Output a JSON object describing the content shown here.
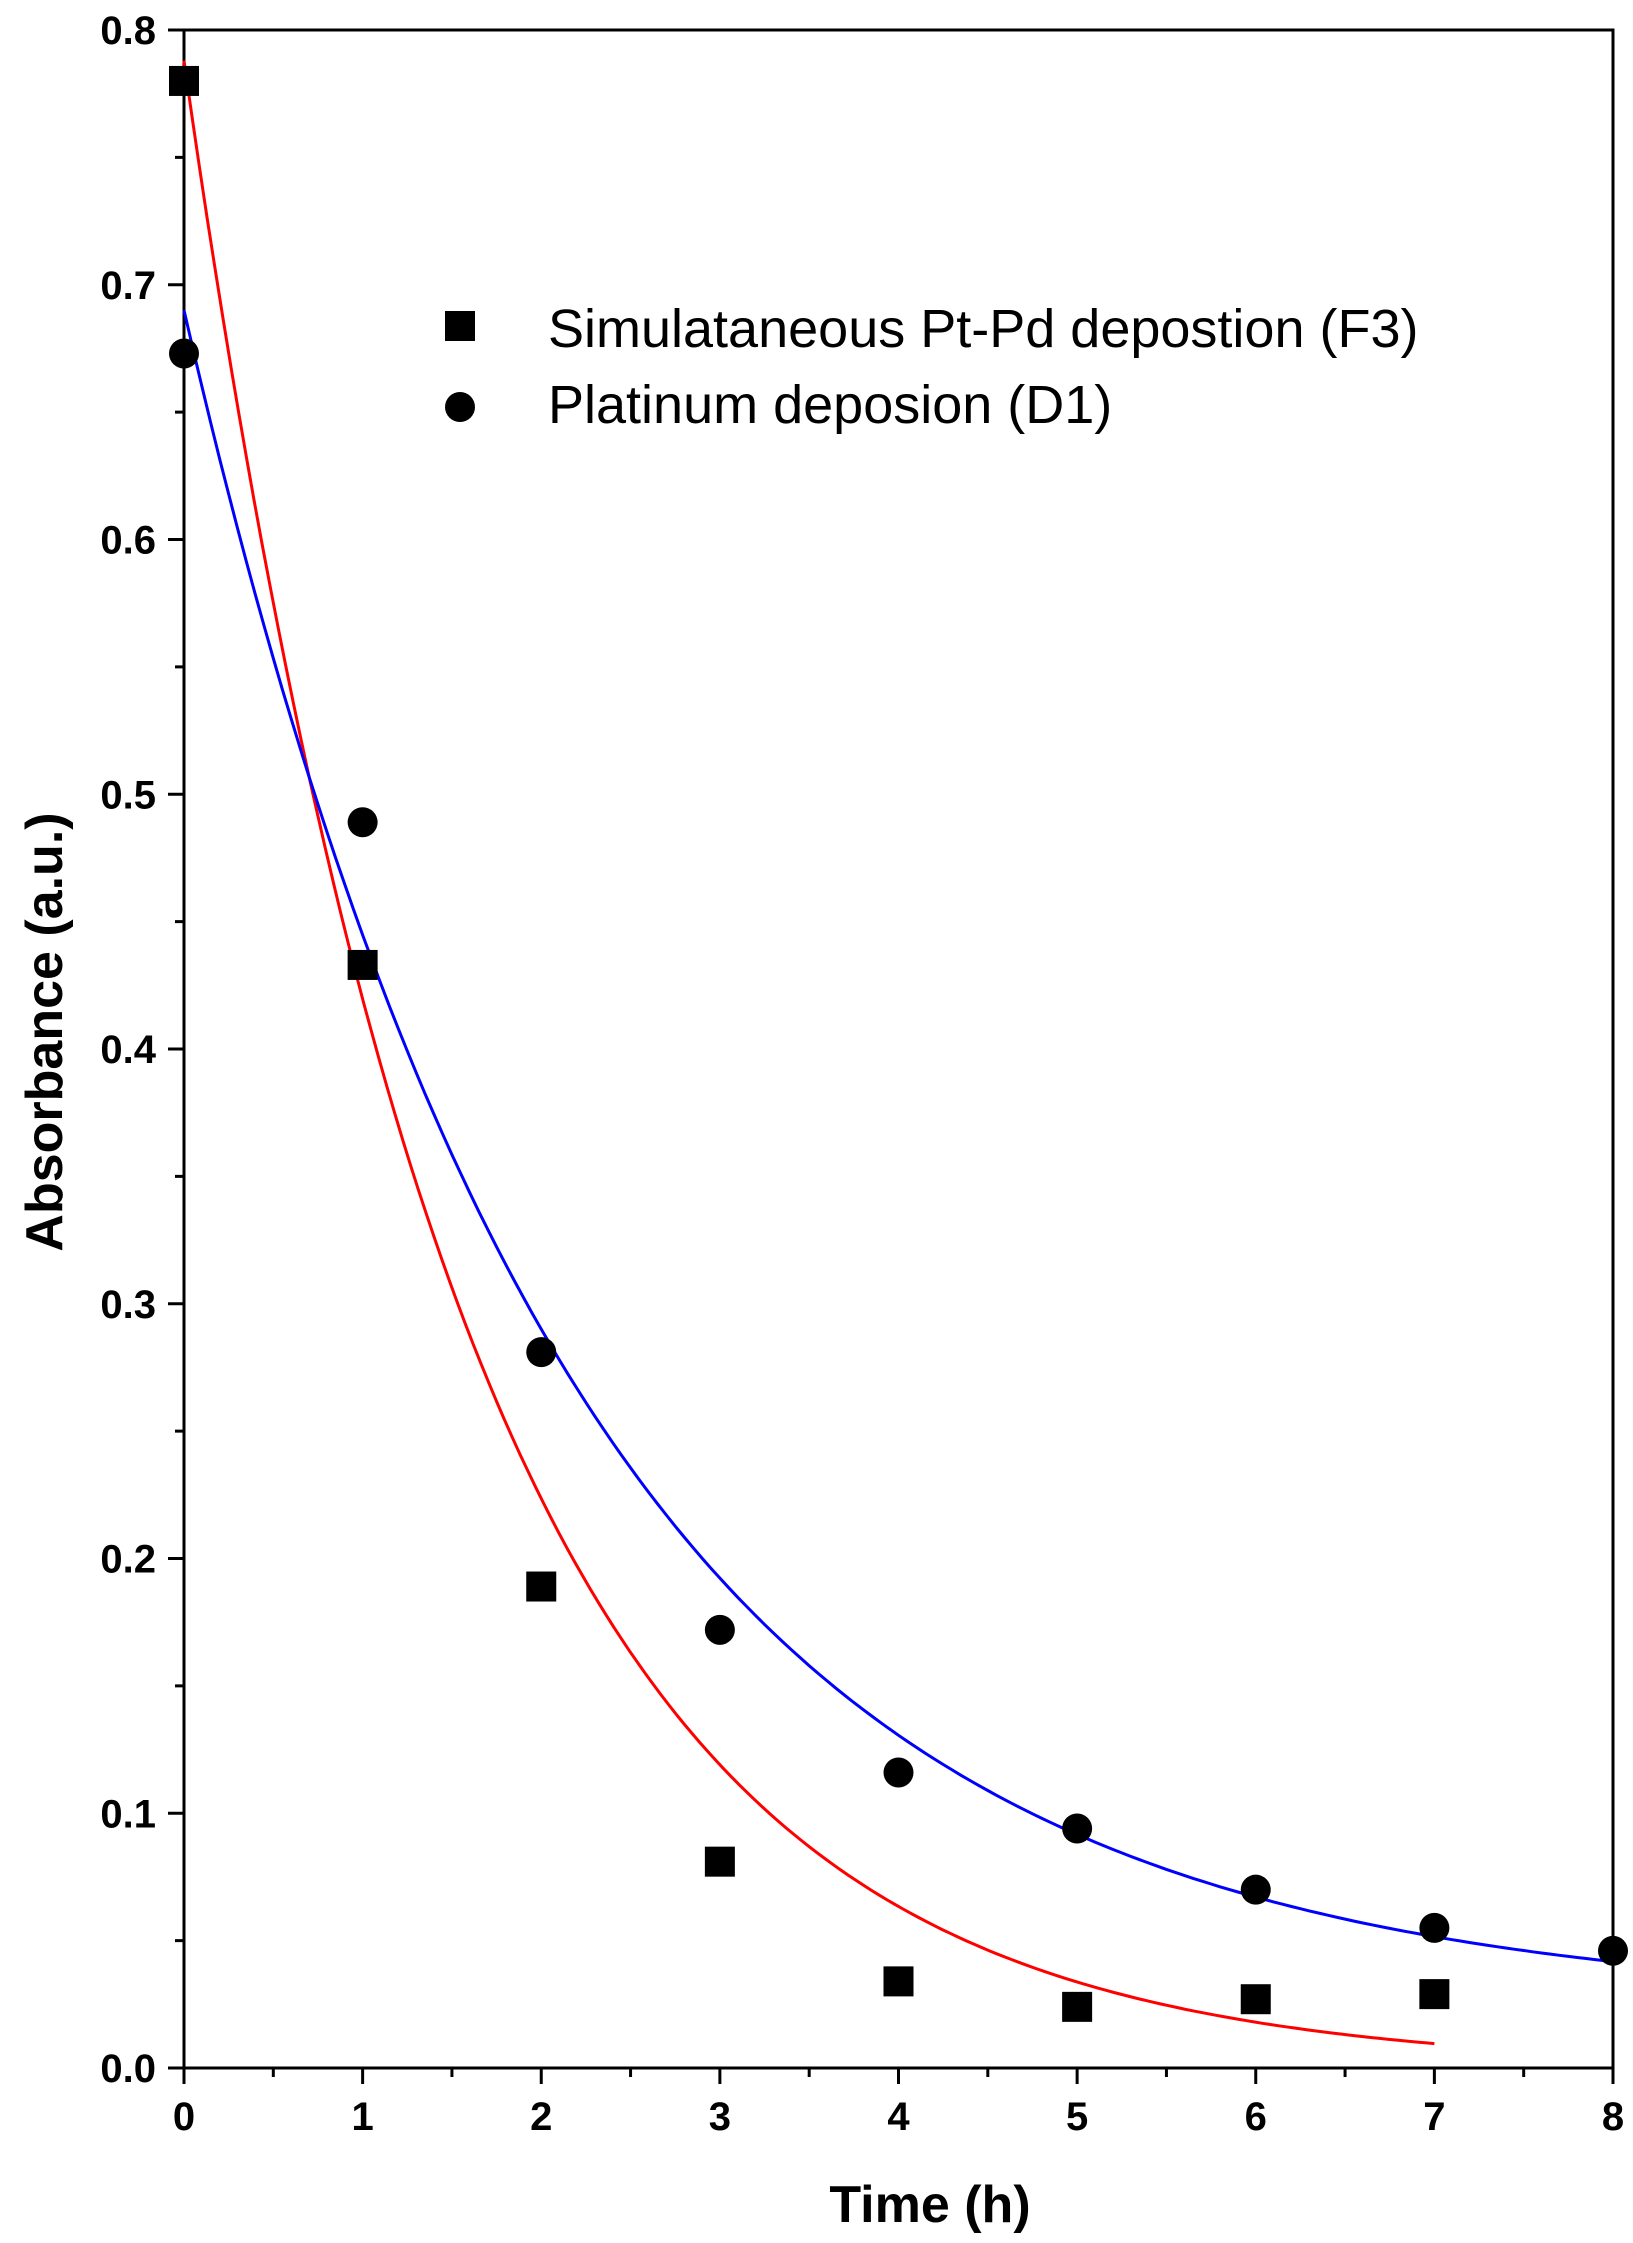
{
  "chart_data": {
    "type": "scatter",
    "title": "",
    "xlabel": "Time (h)",
    "ylabel": "Absorbance (a.u.)",
    "xlim": [
      0,
      8
    ],
    "ylim": [
      0.0,
      0.8
    ],
    "x_ticks": [
      "0",
      "1",
      "2",
      "3",
      "4",
      "5",
      "6",
      "7",
      "8"
    ],
    "y_ticks": [
      "0.0",
      "0.1",
      "0.2",
      "0.3",
      "0.4",
      "0.5",
      "0.6",
      "0.7",
      "0.8"
    ],
    "grid": false,
    "legend_position": "top-right",
    "series": [
      {
        "name": "Simulataneous Pt-Pd depostion (F3)",
        "marker": "square",
        "marker_color": "#000000",
        "x": [
          0,
          1,
          2,
          3,
          4,
          5,
          6,
          7
        ],
        "values": [
          0.78,
          0.433,
          0.189,
          0.081,
          0.034,
          0.024,
          0.027,
          0.029
        ],
        "fit": {
          "model": "exponential",
          "color": "#ff0000",
          "a": 0.788,
          "k": 0.63,
          "x_range": [
            0,
            7
          ]
        }
      },
      {
        "name": "Platinum deposion (D1)",
        "marker": "circle",
        "marker_color": "#000000",
        "x": [
          0,
          1,
          2,
          3,
          4,
          5,
          6,
          7,
          8
        ],
        "values": [
          0.673,
          0.489,
          0.281,
          0.172,
          0.116,
          0.094,
          0.07,
          0.055,
          0.046
        ],
        "fit": {
          "model": "exponential-plus-offset",
          "color": "#0000ff",
          "a": 0.665,
          "k": 0.46,
          "c": 0.025,
          "x_range": [
            0,
            8
          ]
        }
      }
    ]
  }
}
